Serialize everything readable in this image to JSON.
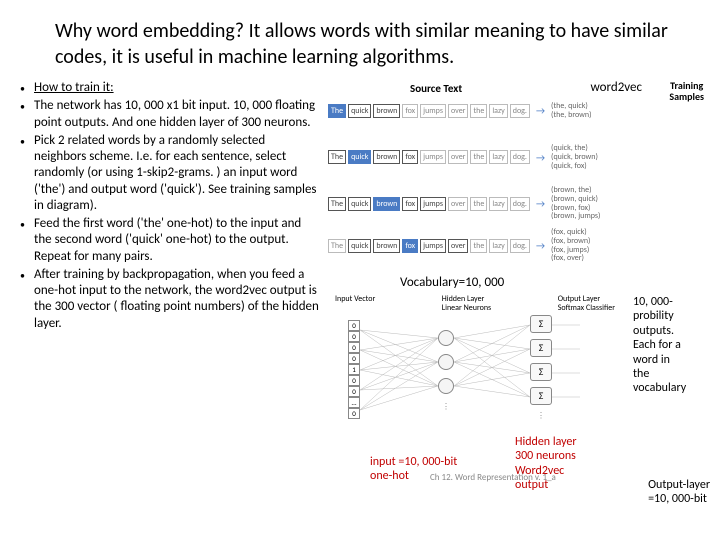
{
  "title": "Why word embedding? It allows words with similar meaning to have similar codes, it is useful in machine learning algorithms.",
  "bullets": [
    {
      "text": "How to train it:",
      "underline": true
    },
    {
      "text": "The network has 10, 000 x1 bit input. 10, 000 floating point outputs. And one hidden layer of 300 neurons."
    },
    {
      "text": "Pick 2 related words by a randomly selected neighbors scheme. I.e. for each sentence, select randomly (or using 1-skip2-grams. ) an input word ('the') and output word ('quick'). See training samples in diagram)."
    },
    {
      "text": "Feed the first word ('the' one-hot) to the input and the second word ('quick' one-hot) to the output. Repeat for many pairs."
    },
    {
      "text": "After training by backpropagation, when you feed a one-hot input to the network, the word2vec output is the 300 vector ( floating point numbers) of the hidden layer."
    }
  ],
  "labels": {
    "source_text": "Source Text",
    "word2vec": "word2vec",
    "training_samples": "Training\nSamples",
    "vocabulary": "Vocabulary=10, 000",
    "input_vector": "Input Vector",
    "hidden_layer": "Hidden Layer\nLinear Neurons",
    "output_layer": "Output Layer\nSoftmax Classifier",
    "hidden_red": "Hidden layer\n300 neurons\nWord2vec\noutput",
    "input_red": "input =10, 000-bit\none-hot",
    "right_anno": "10, 000-\nprobility\noutputs.\nEach for a\nword in\nthe\nvocabulary",
    "output_layer_bottom": "Output-layer\n=10, 000-bit",
    "footer": "Ch 12. Word Representation v. 1_a"
  },
  "source_rows": [
    {
      "words": [
        "The",
        "quick",
        "brown",
        "fox",
        "jumps",
        "over",
        "the",
        "lazy",
        "dog."
      ],
      "hl": 0,
      "box": [
        1,
        2
      ],
      "samples": [
        "(the, quick)",
        "(the, brown)"
      ]
    },
    {
      "words": [
        "The",
        "quick",
        "brown",
        "fox",
        "jumps",
        "over",
        "the",
        "lazy",
        "dog."
      ],
      "hl": 1,
      "box": [
        0,
        2,
        3
      ],
      "samples": [
        "(quick, the)",
        "(quick, brown)",
        "(quick, fox)"
      ]
    },
    {
      "words": [
        "The",
        "quick",
        "brown",
        "fox",
        "jumps",
        "over",
        "the",
        "lazy",
        "dog."
      ],
      "hl": 2,
      "box": [
        0,
        1,
        3,
        4
      ],
      "samples": [
        "(brown, the)",
        "(brown, quick)",
        "(brown, fox)",
        "(brown, jumps)"
      ]
    },
    {
      "words": [
        "The",
        "quick",
        "brown",
        "fox",
        "jumps",
        "over",
        "the",
        "lazy",
        "dog."
      ],
      "hl": 3,
      "box": [
        1,
        2,
        4,
        5
      ],
      "samples": [
        "(fox, quick)",
        "(fox, brown)",
        "(fox, jumps)",
        "(fox, over)"
      ]
    }
  ],
  "input_vector": [
    "0",
    "0",
    "0",
    "0",
    "1",
    "0",
    "0",
    "...",
    "0"
  ],
  "colors": {
    "red": "#c00000",
    "blue": "#4a7bc4",
    "gray": "#888888"
  }
}
